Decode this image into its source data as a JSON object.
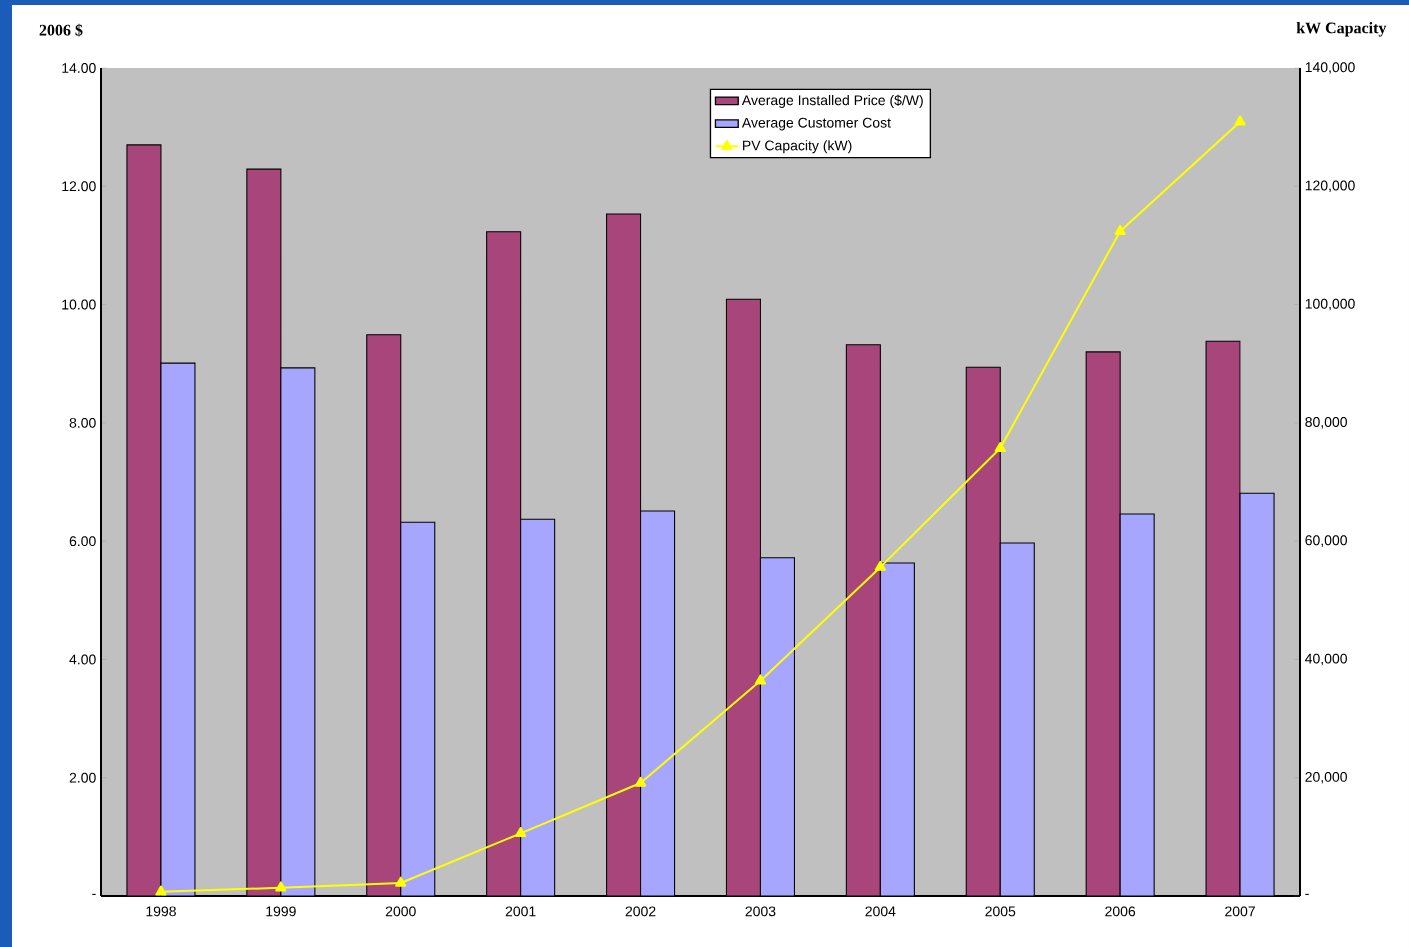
{
  "chart_data": {
    "type": "bar",
    "ylabel": "2006 $",
    "y2label": "kW Capacity",
    "categories": [
      "1998",
      "1999",
      "2000",
      "2001",
      "2002",
      "2003",
      "2004",
      "2005",
      "2006",
      "2007"
    ],
    "series": [
      {
        "name": "Average Installed Price ($/W)",
        "color": "#a8457a",
        "values": [
          12.7,
          12.29,
          9.49,
          11.23,
          11.53,
          10.09,
          9.32,
          8.94,
          9.2,
          9.38
        ]
      },
      {
        "name": "Average Customer Cost",
        "color": "#a6a6ff",
        "values": [
          9.01,
          8.93,
          6.32,
          6.37,
          6.51,
          5.72,
          5.63,
          5.97,
          6.46,
          6.81
        ]
      },
      {
        "name": "PV Capacity (kW)",
        "type": "line",
        "axis": "y2",
        "color": "#ffff00",
        "marker": "triangle",
        "values": [
          700,
          1400,
          2200,
          10600,
          19100,
          36400,
          55600,
          75700,
          112400,
          130900
        ]
      }
    ],
    "ylim": [
      0,
      14
    ],
    "yticks": [
      {
        "value": 0,
        "label": "-"
      },
      {
        "value": 2,
        "label": "2.00"
      },
      {
        "value": 4,
        "label": "4.00"
      },
      {
        "value": 6,
        "label": "6.00"
      },
      {
        "value": 8,
        "label": "8.00"
      },
      {
        "value": 10,
        "label": "10.00"
      },
      {
        "value": 12,
        "label": "12.00"
      },
      {
        "value": 14,
        "label": "14.00"
      }
    ],
    "y2lim": [
      0,
      140000
    ],
    "y2ticks": [
      {
        "value": 0,
        "label": "-"
      },
      {
        "value": 20000,
        "label": "20,000"
      },
      {
        "value": 40000,
        "label": "40,000"
      },
      {
        "value": 60000,
        "label": "60,000"
      },
      {
        "value": 80000,
        "label": "80,000"
      },
      {
        "value": 100000,
        "label": "100,000"
      },
      {
        "value": 120000,
        "label": "120,000"
      },
      {
        "value": 140000,
        "label": "140,000"
      }
    ],
    "grid": false,
    "legend": "top"
  }
}
